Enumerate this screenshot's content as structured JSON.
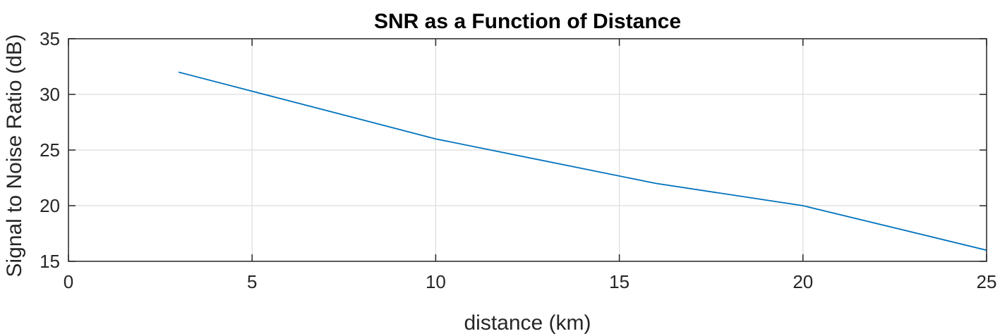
{
  "chart_data": {
    "type": "line",
    "title": "SNR as a Function of Distance",
    "xlabel": "distance (km)",
    "ylabel": "Signal to Noise Ratio (dB)",
    "xlim": [
      0,
      25
    ],
    "ylim": [
      15,
      35
    ],
    "xticks": [
      "0",
      "5",
      "10",
      "15",
      "20",
      "25"
    ],
    "yticks": [
      "15",
      "20",
      "25",
      "30",
      "35"
    ],
    "grid": true,
    "series": [
      {
        "x": [
          3,
          10,
          16,
          20,
          25
        ],
        "y": [
          32,
          26,
          22,
          20,
          16
        ],
        "color": "#0072BD"
      }
    ]
  }
}
